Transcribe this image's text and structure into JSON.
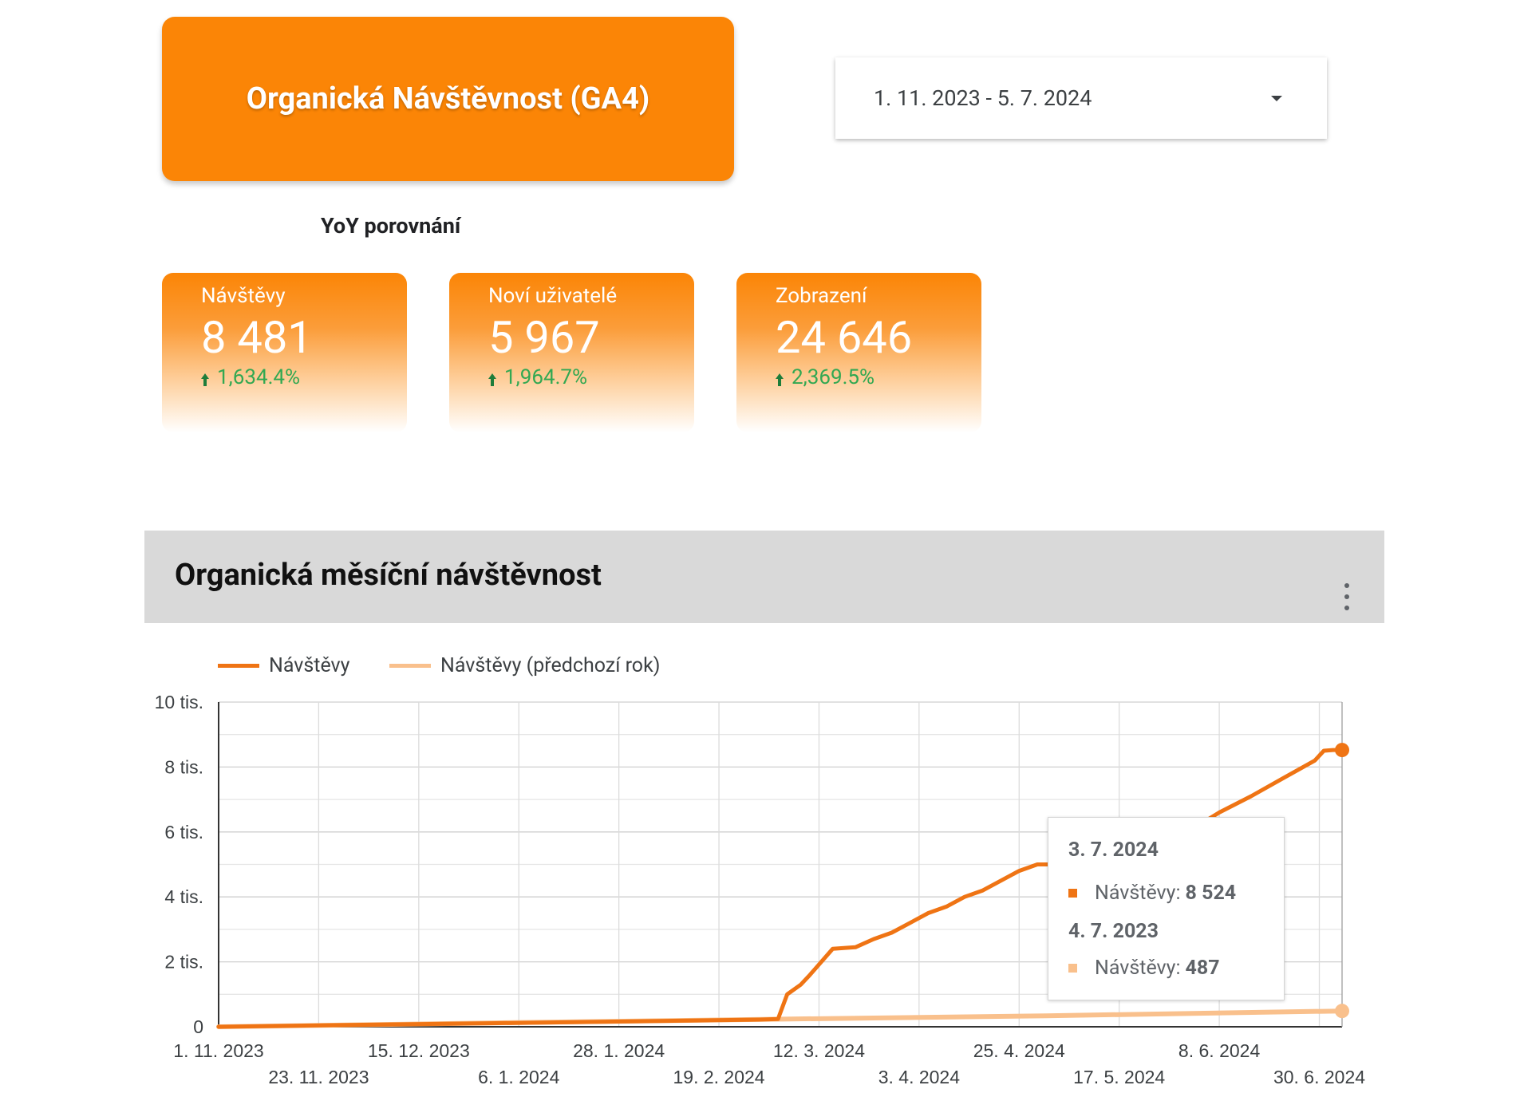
{
  "header": {
    "title": "Organická Návštěvnost (GA4)"
  },
  "date_range": {
    "value": "1. 11. 2023 - 5. 7. 2024"
  },
  "yoy_label": "YoY porovnání",
  "kpis": [
    {
      "label": "Návštěvy",
      "value": "8 481",
      "change": "1,634.4%"
    },
    {
      "label": "Noví uživatelé",
      "value": "5 967",
      "change": "1,964.7%"
    },
    {
      "label": "Zobrazení",
      "value": "24 646",
      "change": "2,369.5%"
    }
  ],
  "chart_title": "Organická měsíční návštěvnost",
  "colors": {
    "accent": "#fb8506",
    "current": "#ef7414",
    "previous": "#f9c08c",
    "increase": "#32a852"
  },
  "icons": {
    "menu": "more-vert-icon",
    "dropdown": "caret-down-icon",
    "trend": "arrow-up-icon"
  },
  "chart_data": {
    "type": "line",
    "x_type": "date",
    "x_range": [
      "2023-11-01",
      "2024-07-05"
    ],
    "ylim": [
      0,
      10000
    ],
    "yticks": [
      0,
      2000,
      4000,
      6000,
      8000,
      10000
    ],
    "ytick_labels": [
      "0",
      "2 tis.",
      "4 tis.",
      "6 tis.",
      "8 tis.",
      "10 tis."
    ],
    "xticks": [
      "2023-11-01",
      "2023-11-23",
      "2023-12-15",
      "2024-01-06",
      "2024-01-28",
      "2024-02-19",
      "2024-03-12",
      "2024-04-03",
      "2024-04-25",
      "2024-05-17",
      "2024-06-08",
      "2024-06-30"
    ],
    "xtick_labels": [
      "1. 11. 2023",
      "23. 11. 2023",
      "15. 12. 2023",
      "6. 1. 2024",
      "28. 1. 2024",
      "19. 2. 2024",
      "12. 3. 2024",
      "3. 4. 2024",
      "25. 4. 2024",
      "17. 5. 2024",
      "8. 6. 2024",
      "30. 6. 2024"
    ],
    "grid": true,
    "legend_position": "top-left",
    "series": [
      {
        "name": "Návštěvy",
        "points": [
          [
            "2023-11-01",
            0
          ],
          [
            "2023-12-01",
            60
          ],
          [
            "2024-01-01",
            110
          ],
          [
            "2024-02-01",
            170
          ],
          [
            "2024-02-28",
            220
          ],
          [
            "2024-03-03",
            240
          ],
          [
            "2024-03-05",
            1000
          ],
          [
            "2024-03-08",
            1300
          ],
          [
            "2024-03-10",
            1600
          ],
          [
            "2024-03-15",
            2400
          ],
          [
            "2024-03-20",
            2450
          ],
          [
            "2024-03-24",
            2700
          ],
          [
            "2024-03-28",
            2900
          ],
          [
            "2024-04-01",
            3200
          ],
          [
            "2024-04-05",
            3500
          ],
          [
            "2024-04-09",
            3700
          ],
          [
            "2024-04-13",
            4000
          ],
          [
            "2024-04-17",
            4200
          ],
          [
            "2024-04-21",
            4500
          ],
          [
            "2024-04-25",
            4800
          ],
          [
            "2024-04-29",
            5000
          ],
          [
            "2024-05-03",
            5000
          ],
          [
            "2024-05-08",
            5150
          ],
          [
            "2024-05-13",
            5150
          ],
          [
            "2024-05-18",
            5400
          ],
          [
            "2024-05-24",
            5700
          ],
          [
            "2024-06-01",
            6000
          ],
          [
            "2024-06-08",
            6600
          ],
          [
            "2024-06-15",
            7100
          ],
          [
            "2024-06-22",
            7650
          ],
          [
            "2024-06-29",
            8200
          ],
          [
            "2024-07-01",
            8500
          ],
          [
            "2024-07-03",
            8524
          ],
          [
            "2024-07-05",
            8524
          ]
        ]
      },
      {
        "name": "Návštěvy (předchozí rok)",
        "points": [
          [
            "2023-11-01",
            0
          ],
          [
            "2024-01-01",
            120
          ],
          [
            "2024-03-01",
            230
          ],
          [
            "2024-05-01",
            340
          ],
          [
            "2024-07-05",
            487
          ]
        ]
      }
    ],
    "tooltip": {
      "date_current": "3. 7. 2024",
      "label_current": "Návštěvy:",
      "value_current": "8 524",
      "date_previous": "4. 7. 2023",
      "label_previous": "Návštěvy:",
      "value_previous": "487"
    }
  }
}
